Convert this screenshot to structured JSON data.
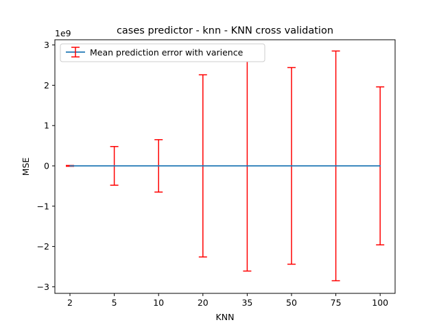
{
  "chart_data": {
    "type": "line",
    "title": "cases predictor - knn - KNN cross validation",
    "xlabel": "KNN",
    "ylabel": "MSE",
    "y_multiplier_label": "1e9",
    "categories": [
      "2",
      "5",
      "10",
      "20",
      "35",
      "50",
      "75",
      "100"
    ],
    "series": [
      {
        "name": "Mean prediction error with varience",
        "values": [
          0,
          0,
          0,
          0,
          0,
          0,
          0,
          0
        ],
        "errors": [
          0.01,
          0.48,
          0.65,
          2.26,
          2.61,
          2.44,
          2.85,
          1.96
        ],
        "line_color": "#1f77b4",
        "error_color": "#ff0000"
      }
    ],
    "yticks": [
      3,
      2,
      1,
      0,
      -1,
      -2,
      -3
    ],
    "ytick_labels": [
      "3",
      "2",
      "1",
      "0",
      "−1",
      "−2",
      "−3"
    ],
    "ylim": [
      -3.15,
      3.1
    ],
    "grid": false,
    "legend_position": "upper-left"
  }
}
